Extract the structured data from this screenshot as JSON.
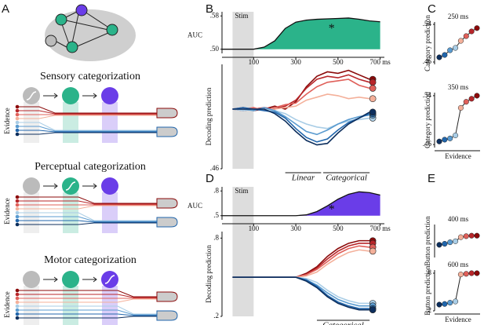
{
  "panels": {
    "letters": [
      "A",
      "B",
      "C",
      "D",
      "E"
    ],
    "a": {
      "sections": [
        {
          "title": "Sensory categorization",
          "axis": "Evidence"
        },
        {
          "title": "Perceptual categorization",
          "axis": "Evidence"
        },
        {
          "title": "Motor categorization",
          "axis": "Evidence"
        }
      ]
    }
  },
  "chart_data": [
    {
      "type": "area",
      "ylabel": "AUC",
      "annotation": "Stim",
      "marker": "*",
      "color": "#2bb38a",
      "x": [
        -50,
        0,
        50,
        100,
        150,
        200,
        250,
        300,
        350,
        400,
        450,
        500,
        550,
        600,
        650,
        700
      ],
      "values": [
        0.5,
        0.5,
        0.5,
        0.5,
        0.505,
        0.52,
        0.55,
        0.565,
        0.57,
        0.572,
        0.573,
        0.574,
        0.575,
        0.572,
        0.568,
        0.566
      ],
      "xlim": [
        -50,
        720
      ],
      "xticks": [
        100,
        300,
        500,
        {
          "value": 700,
          "label": "700 ms"
        }
      ],
      "ylim": [
        0.49,
        0.59
      ],
      "yticks": [
        {
          "value": 0.58,
          "label": ".58"
        },
        {
          "value": 0.5,
          "label": ".50"
        }
      ]
    },
    {
      "type": "line",
      "ylabel": "Decoding prediction",
      "annotations": [
        "Linear",
        "Categorical"
      ],
      "x": [
        0,
        50,
        100,
        150,
        200,
        250,
        300,
        350,
        400,
        450,
        500,
        550,
        600,
        650
      ],
      "xlim": [
        -50,
        720
      ],
      "ylim": [
        0.46,
        0.53
      ],
      "yticks": [
        {
          "value": 0.46,
          "label": ".46"
        }
      ],
      "series": [
        {
          "color": "#8b0a0a",
          "values": [
            0.5,
            0.501,
            0.499,
            0.5,
            0.502,
            0.5,
            0.505,
            0.515,
            0.522,
            0.525,
            0.524,
            0.526,
            0.523,
            0.52
          ]
        },
        {
          "color": "#b8262a",
          "values": [
            0.5,
            0.499,
            0.5,
            0.501,
            0.5,
            0.502,
            0.506,
            0.514,
            0.52,
            0.522,
            0.521,
            0.523,
            0.52,
            0.518
          ]
        },
        {
          "color": "#e0605a",
          "values": [
            0.5,
            0.5,
            0.501,
            0.499,
            0.501,
            0.503,
            0.504,
            0.51,
            0.515,
            0.518,
            0.519,
            0.52,
            0.516,
            0.514
          ]
        },
        {
          "color": "#f4b09a",
          "values": [
            0.5,
            0.501,
            0.5,
            0.5,
            0.5,
            0.501,
            0.502,
            0.506,
            0.508,
            0.51,
            0.509,
            0.507,
            0.508,
            0.507
          ]
        },
        {
          "color": "#a9cde6",
          "values": [
            0.5,
            0.499,
            0.5,
            0.5,
            0.499,
            0.497,
            0.493,
            0.49,
            0.488,
            0.487,
            0.49,
            0.492,
            0.493,
            0.494
          ]
        },
        {
          "color": "#5a9bd0",
          "values": [
            0.5,
            0.5,
            0.499,
            0.501,
            0.499,
            0.495,
            0.49,
            0.485,
            0.483,
            0.486,
            0.49,
            0.493,
            0.495,
            0.496
          ]
        },
        {
          "color": "#2166ac",
          "values": [
            0.5,
            0.501,
            0.5,
            0.499,
            0.498,
            0.494,
            0.487,
            0.481,
            0.478,
            0.48,
            0.486,
            0.491,
            0.494,
            0.497
          ]
        },
        {
          "color": "#0d2f5e",
          "values": [
            0.5,
            0.5,
            0.5,
            0.5,
            0.497,
            0.492,
            0.485,
            0.479,
            0.476,
            0.477,
            0.484,
            0.49,
            0.494,
            0.498
          ]
        }
      ]
    },
    {
      "type": "dots",
      "title": "250 ms",
      "ylabel": "Category prediction",
      "label_color": "#2bb38a",
      "point_colors": [
        "#0d2f5e",
        "#2166ac",
        "#5a9bd0",
        "#a9cde6",
        "#f4b09a",
        "#e0605a",
        "#b8262a",
        "#8b0a0a"
      ],
      "values": [
        0.47,
        0.475,
        0.485,
        0.49,
        0.505,
        0.515,
        0.525,
        0.532
      ],
      "ylim": [
        0.455,
        0.545
      ],
      "yticks": [
        {
          "value": 0.54,
          "label": ".54"
        },
        {
          "value": 0.46,
          "label": ".46"
        }
      ]
    },
    {
      "type": "dots",
      "title": "350 ms",
      "ylabel": "Category prediction",
      "xlabel": "Evidence",
      "label_color": "#2bb38a",
      "point_colors": [
        "#0d2f5e",
        "#2166ac",
        "#5a9bd0",
        "#a9cde6",
        "#f4b09a",
        "#e0605a",
        "#b8262a",
        "#8b0a0a"
      ],
      "values": [
        0.465,
        0.468,
        0.47,
        0.475,
        0.52,
        0.53,
        0.535,
        0.54
      ],
      "ylim": [
        0.455,
        0.545
      ],
      "yticks": [
        {
          "value": 0.54,
          "label": ".54"
        },
        {
          "value": 0.46,
          "label": ".46"
        }
      ]
    },
    {
      "type": "area",
      "ylabel": "AUC",
      "annotation": "Stim",
      "marker": "*",
      "color": "#6a3de8",
      "x": [
        -50,
        0,
        50,
        100,
        150,
        200,
        250,
        300,
        350,
        400,
        450,
        500,
        550,
        600,
        650,
        700
      ],
      "values": [
        0.5,
        0.5,
        0.5,
        0.5,
        0.5,
        0.5,
        0.5,
        0.5,
        0.51,
        0.55,
        0.62,
        0.7,
        0.76,
        0.79,
        0.78,
        0.75
      ],
      "xlim": [
        -50,
        720
      ],
      "xticks": [
        100,
        300,
        500,
        {
          "value": 700,
          "label": "700 ms"
        }
      ],
      "ylim": [
        0.45,
        0.85
      ],
      "yticks": [
        {
          "value": 0.8,
          "label": ".8"
        },
        {
          "value": 0.5,
          "label": ".5"
        }
      ]
    },
    {
      "type": "line",
      "ylabel": "Decoding prediction",
      "annotations": [
        "Categorical"
      ],
      "x": [
        0,
        50,
        100,
        150,
        200,
        250,
        300,
        350,
        400,
        450,
        500,
        550,
        600,
        650
      ],
      "xlim": [
        -50,
        720
      ],
      "ylim": [
        0.2,
        0.85
      ],
      "yticks": [
        {
          "value": 0.8,
          "label": ".8"
        },
        {
          "value": 0.2,
          "label": ".2"
        }
      ],
      "series": [
        {
          "color": "#8b0a0a",
          "values": [
            0.5,
            0.5,
            0.5,
            0.5,
            0.5,
            0.5,
            0.5,
            0.53,
            0.58,
            0.66,
            0.72,
            0.76,
            0.78,
            0.78
          ]
        },
        {
          "color": "#b8262a",
          "values": [
            0.5,
            0.5,
            0.5,
            0.5,
            0.5,
            0.5,
            0.5,
            0.52,
            0.57,
            0.64,
            0.7,
            0.74,
            0.76,
            0.76
          ]
        },
        {
          "color": "#e0605a",
          "values": [
            0.5,
            0.5,
            0.5,
            0.5,
            0.5,
            0.5,
            0.5,
            0.52,
            0.56,
            0.62,
            0.68,
            0.72,
            0.74,
            0.73
          ]
        },
        {
          "color": "#f4b09a",
          "values": [
            0.5,
            0.5,
            0.5,
            0.5,
            0.5,
            0.5,
            0.5,
            0.51,
            0.54,
            0.6,
            0.65,
            0.69,
            0.71,
            0.7
          ]
        },
        {
          "color": "#a9cde6",
          "values": [
            0.5,
            0.5,
            0.5,
            0.5,
            0.5,
            0.5,
            0.5,
            0.49,
            0.46,
            0.4,
            0.35,
            0.32,
            0.3,
            0.3
          ]
        },
        {
          "color": "#5a9bd0",
          "values": [
            0.5,
            0.5,
            0.5,
            0.5,
            0.5,
            0.5,
            0.5,
            0.48,
            0.44,
            0.38,
            0.33,
            0.3,
            0.28,
            0.28
          ]
        },
        {
          "color": "#2166ac",
          "values": [
            0.5,
            0.5,
            0.5,
            0.5,
            0.5,
            0.5,
            0.5,
            0.48,
            0.43,
            0.36,
            0.31,
            0.28,
            0.26,
            0.26
          ]
        },
        {
          "color": "#0d2f5e",
          "values": [
            0.5,
            0.5,
            0.5,
            0.5,
            0.5,
            0.5,
            0.5,
            0.47,
            0.42,
            0.35,
            0.3,
            0.27,
            0.25,
            0.25
          ]
        }
      ]
    },
    {
      "type": "dots",
      "title": "400 ms",
      "ylabel": "Button prediction",
      "label_color": "#6a3de8",
      "point_colors": [
        "#0d2f5e",
        "#2166ac",
        "#5a9bd0",
        "#a9cde6",
        "#f4b09a",
        "#e0605a",
        "#b8262a",
        "#8b0a0a"
      ],
      "values": [
        0.45,
        0.47,
        0.5,
        0.52,
        0.6,
        0.62,
        0.63,
        0.63
      ],
      "ylim": [
        0.2,
        0.85
      ]
    },
    {
      "type": "dots",
      "title": "600 ms",
      "ylabel": "Button prediction",
      "xlabel": "Evidence",
      "label_color": "#6a3de8",
      "point_colors": [
        "#0d2f5e",
        "#2166ac",
        "#5a9bd0",
        "#a9cde6",
        "#f4b09a",
        "#e0605a",
        "#b8262a",
        "#8b0a0a"
      ],
      "values": [
        0.3,
        0.31,
        0.33,
        0.35,
        0.78,
        0.79,
        0.8,
        0.8
      ],
      "ylim": [
        0.2,
        0.85
      ],
      "yticks": [
        {
          "value": 0.8,
          "label": ".8"
        },
        {
          "value": 0.2,
          "label": ".2"
        }
      ]
    }
  ]
}
